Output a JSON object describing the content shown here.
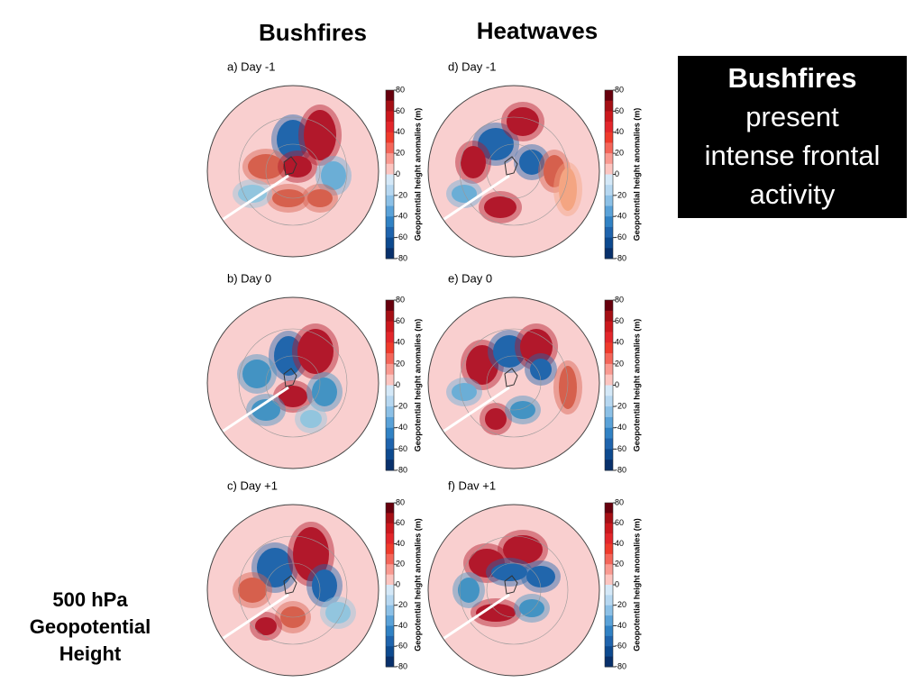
{
  "headers": [
    "Bushfires",
    "Heatwaves"
  ],
  "panels": [
    {
      "label": "a) Day -1"
    },
    {
      "label": "b) Day 0"
    },
    {
      "label": "c) Day +1"
    },
    {
      "label": "d) Day -1"
    },
    {
      "label": "e) Day 0"
    },
    {
      "label": "f) Dav +1"
    }
  ],
  "colorbar": {
    "label": "Geopotential height anomalies (m)",
    "ticks": [
      80,
      60,
      40,
      20,
      0,
      -20,
      -40,
      -60,
      -80
    ]
  },
  "callout": {
    "title": "Bushfires",
    "lines": [
      "present",
      "intense frontal",
      "activity"
    ]
  },
  "footnote": [
    "500 hPa",
    "Geopotential",
    "Height"
  ]
}
